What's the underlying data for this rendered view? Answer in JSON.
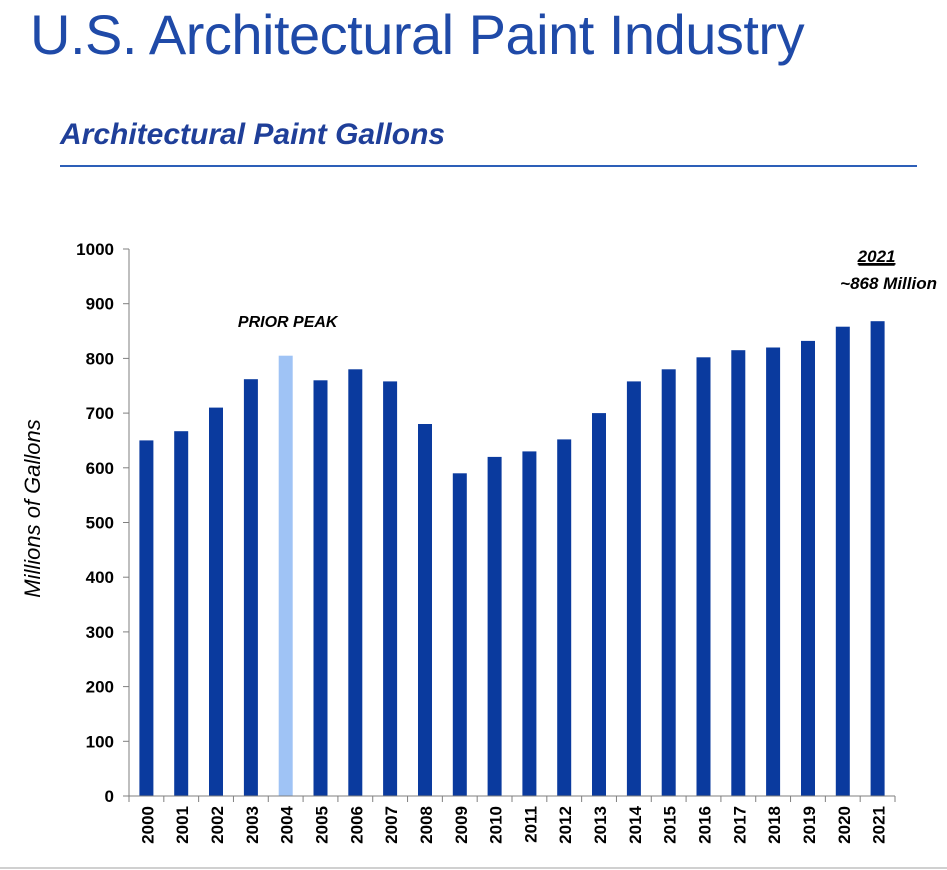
{
  "slide": {
    "title": "U.S. Architectural Paint Industry"
  },
  "chart_data": {
    "type": "bar",
    "title": "Architectural Paint Gallons",
    "xlabel": "",
    "ylabel": "Millions of Gallons",
    "ylim": [
      0,
      1000
    ],
    "yticks": [
      0,
      100,
      200,
      300,
      400,
      500,
      600,
      700,
      800,
      900,
      1000
    ],
    "grid": false,
    "categories": [
      "2000",
      "2001",
      "2002",
      "2003",
      "2004",
      "2005",
      "2006",
      "2007",
      "2008",
      "2009",
      "2010",
      "2011",
      "2012",
      "2013",
      "2014",
      "2015",
      "2016",
      "2017",
      "2018",
      "2019",
      "2020",
      "2021"
    ],
    "values": [
      650,
      667,
      710,
      762,
      805,
      760,
      780,
      758,
      680,
      590,
      620,
      630,
      652,
      700,
      758,
      780,
      802,
      815,
      820,
      832,
      858,
      868
    ],
    "colors": {
      "bar": "#0a3a9e",
      "highlight": "#9fc3f5",
      "axis": "#7f7f7f"
    },
    "highlight_index": 4,
    "annotations": [
      {
        "text": "PRIOR PEAK",
        "target": "2004"
      },
      {
        "text": "2021",
        "underline": true,
        "target": "2021"
      },
      {
        "text": "~868 Million",
        "target": "2021"
      }
    ]
  }
}
